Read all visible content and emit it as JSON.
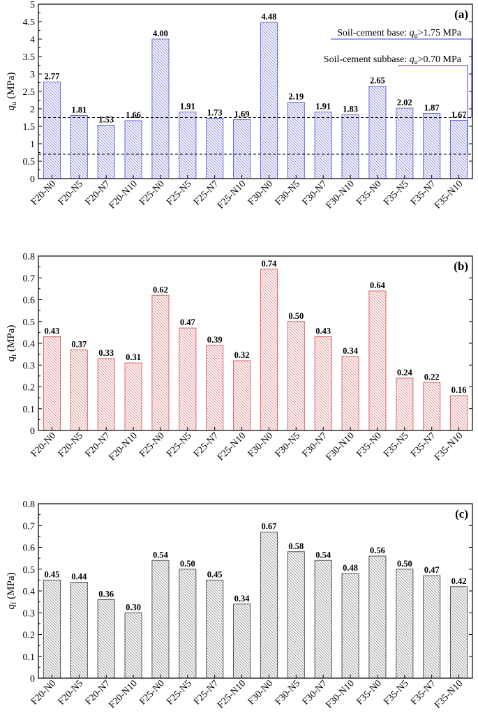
{
  "chart_data": [
    {
      "type": "bar",
      "panel_label": "(a)",
      "ylabel_main": "q",
      "ylabel_sub": "u",
      "ylabel_unit": " (MPa)",
      "ylim": [
        0,
        5
      ],
      "ytick_step": 0.5,
      "yticks": [
        "0",
        "0.5",
        "1",
        "1.5",
        "2",
        "2.5",
        "3",
        "3.5",
        "4",
        "4.5",
        "5"
      ],
      "categories": [
        "F20-N0",
        "F20-N5",
        "F20-N7",
        "F20-N10",
        "F25-N0",
        "F25-N5",
        "F25-N7",
        "F25-N10",
        "F30-N0",
        "F30-N5",
        "F30-N7",
        "F30-N10",
        "F35-N0",
        "F35-N5",
        "F35-N7",
        "F35-N10"
      ],
      "values": [
        2.77,
        1.81,
        1.53,
        1.66,
        4.0,
        1.91,
        1.73,
        1.69,
        4.48,
        2.19,
        1.91,
        1.83,
        2.65,
        2.02,
        1.87,
        1.67
      ],
      "value_labels": [
        "2.77",
        "1.81",
        "1.53",
        "1.66",
        "4.00",
        "1.91",
        "1.73",
        "1.69",
        "4.48",
        "2.19",
        "1.91",
        "1.83",
        "2.65",
        "2.02",
        "1.87",
        "1.67"
      ],
      "colors": {
        "bar_stroke": "#6b6bd6",
        "hatch": "#8080e0"
      },
      "reference_lines": [
        {
          "y": 1.75,
          "text_pre": "Soil-cement base: ",
          "q": "q",
          "sub": "u",
          "text_post": ">1.75 MPa"
        },
        {
          "y": 0.7,
          "text_pre": "Soil-cement subbase: ",
          "q": "q",
          "sub": "u",
          "text_post": ">0.70 MPa"
        }
      ],
      "annotation_color": "#3a3ae0"
    },
    {
      "type": "bar",
      "panel_label": "(b)",
      "ylabel_main": "q",
      "ylabel_sub": "t",
      "ylabel_unit": " (MPa)",
      "ylim": [
        0,
        0.8
      ],
      "ytick_step": 0.1,
      "yticks": [
        "0",
        "0.1",
        "0.2",
        "0.3",
        "0.4",
        "0.5",
        "0.6",
        "0.7",
        "0.8"
      ],
      "categories": [
        "F20-N0",
        "F20-N5",
        "F20-N7",
        "F20-N10",
        "F25-N0",
        "F25-N5",
        "F25-N7",
        "F25-N10",
        "F30-N0",
        "F30-N5",
        "F30-N7",
        "F30-N10",
        "F35-N0",
        "F35-N5",
        "F35-N7",
        "F35-N10"
      ],
      "values": [
        0.43,
        0.37,
        0.33,
        0.31,
        0.62,
        0.47,
        0.39,
        0.32,
        0.74,
        0.5,
        0.43,
        0.34,
        0.64,
        0.24,
        0.22,
        0.16
      ],
      "value_labels": [
        "0.43",
        "0.37",
        "0.33",
        "0.31",
        "0.62",
        "0.47",
        "0.39",
        "0.32",
        "0.74",
        "0.50",
        "0.43",
        "0.34",
        "0.64",
        "0.24",
        "0.22",
        "0.16"
      ],
      "colors": {
        "bar_stroke": "#d96a6a",
        "hatch": "#e08080"
      }
    },
    {
      "type": "bar",
      "panel_label": "(c)",
      "ylabel_main": "q",
      "ylabel_sub": "f",
      "ylabel_unit": " (MPa)",
      "ylim": [
        0,
        0.8
      ],
      "ytick_step": 0.1,
      "yticks": [
        "0",
        "0.1",
        "0.2",
        "0.3",
        "0.4",
        "0.5",
        "0.6",
        "0.7",
        "0.8"
      ],
      "categories": [
        "F20-N0",
        "F20-N5",
        "F20-N7",
        "F20-N10",
        "F25-N0",
        "F25-N5",
        "F25-N7",
        "F25-N10",
        "F30-N0",
        "F30-N5",
        "F30-N7",
        "F30-N10",
        "F35-N0",
        "F35-N5",
        "F35-N7",
        "F35-N10"
      ],
      "values": [
        0.45,
        0.44,
        0.36,
        0.3,
        0.54,
        0.5,
        0.45,
        0.34,
        0.67,
        0.58,
        0.54,
        0.48,
        0.56,
        0.5,
        0.47,
        0.42
      ],
      "value_labels": [
        "0.45",
        "0.44",
        "0.36",
        "0.30",
        "0.54",
        "0.50",
        "0.45",
        "0.34",
        "0.67",
        "0.58",
        "0.54",
        "0.48",
        "0.56",
        "0.50",
        "0.47",
        "0.42"
      ],
      "colors": {
        "bar_stroke": "#555555",
        "hatch": "#8a8a8a"
      }
    }
  ]
}
